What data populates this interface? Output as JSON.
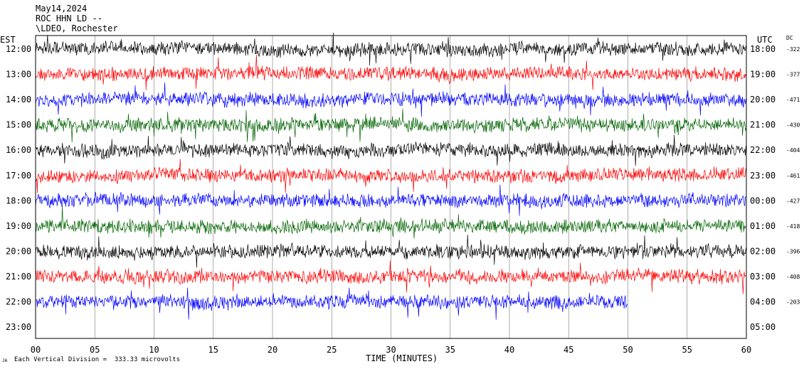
{
  "header": {
    "date": "May14,2024",
    "station": "ROC HHN LD --",
    "location": "\\LDEO, Rochester"
  },
  "chart_data": {
    "type": "line",
    "title": "",
    "left_axis_label": "EST",
    "right_axis_label": "UTC",
    "dc_label": "DC",
    "xlabel": "TIME (MINUTES)",
    "xlim": [
      0,
      60
    ],
    "x_ticks": [
      "00",
      "05",
      "10",
      "15",
      "20",
      "25",
      "30",
      "35",
      "40",
      "45",
      "50",
      "55",
      "60"
    ],
    "footer_note": "Each Vertical Division =  333.33 microvolts",
    "corner_mark": "JA",
    "colors": [
      "#000000",
      "#ff0000",
      "#0000ff",
      "#006400"
    ],
    "rows": [
      {
        "est": "12:00",
        "utc": "18:00",
        "dc": "-322",
        "end_minute": 60
      },
      {
        "est": "13:00",
        "utc": "19:00",
        "dc": "-377",
        "end_minute": 60
      },
      {
        "est": "14:00",
        "utc": "20:00",
        "dc": "-471",
        "end_minute": 60
      },
      {
        "est": "15:00",
        "utc": "21:00",
        "dc": "-430",
        "end_minute": 60
      },
      {
        "est": "16:00",
        "utc": "22:00",
        "dc": "-404",
        "end_minute": 60
      },
      {
        "est": "17:00",
        "utc": "23:00",
        "dc": "-461",
        "end_minute": 60
      },
      {
        "est": "18:00",
        "utc": "00:00",
        "dc": "-427",
        "end_minute": 60
      },
      {
        "est": "19:00",
        "utc": "01:00",
        "dc": "-418",
        "end_minute": 60
      },
      {
        "est": "20:00",
        "utc": "02:00",
        "dc": "-396",
        "end_minute": 60
      },
      {
        "est": "21:00",
        "utc": "03:00",
        "dc": "-408",
        "end_minute": 60
      },
      {
        "est": "22:00",
        "utc": "04:00",
        "dc": "-203",
        "end_minute": 50
      },
      {
        "est": "23:00",
        "utc": "05:00",
        "dc": "",
        "end_minute": 0
      }
    ]
  }
}
